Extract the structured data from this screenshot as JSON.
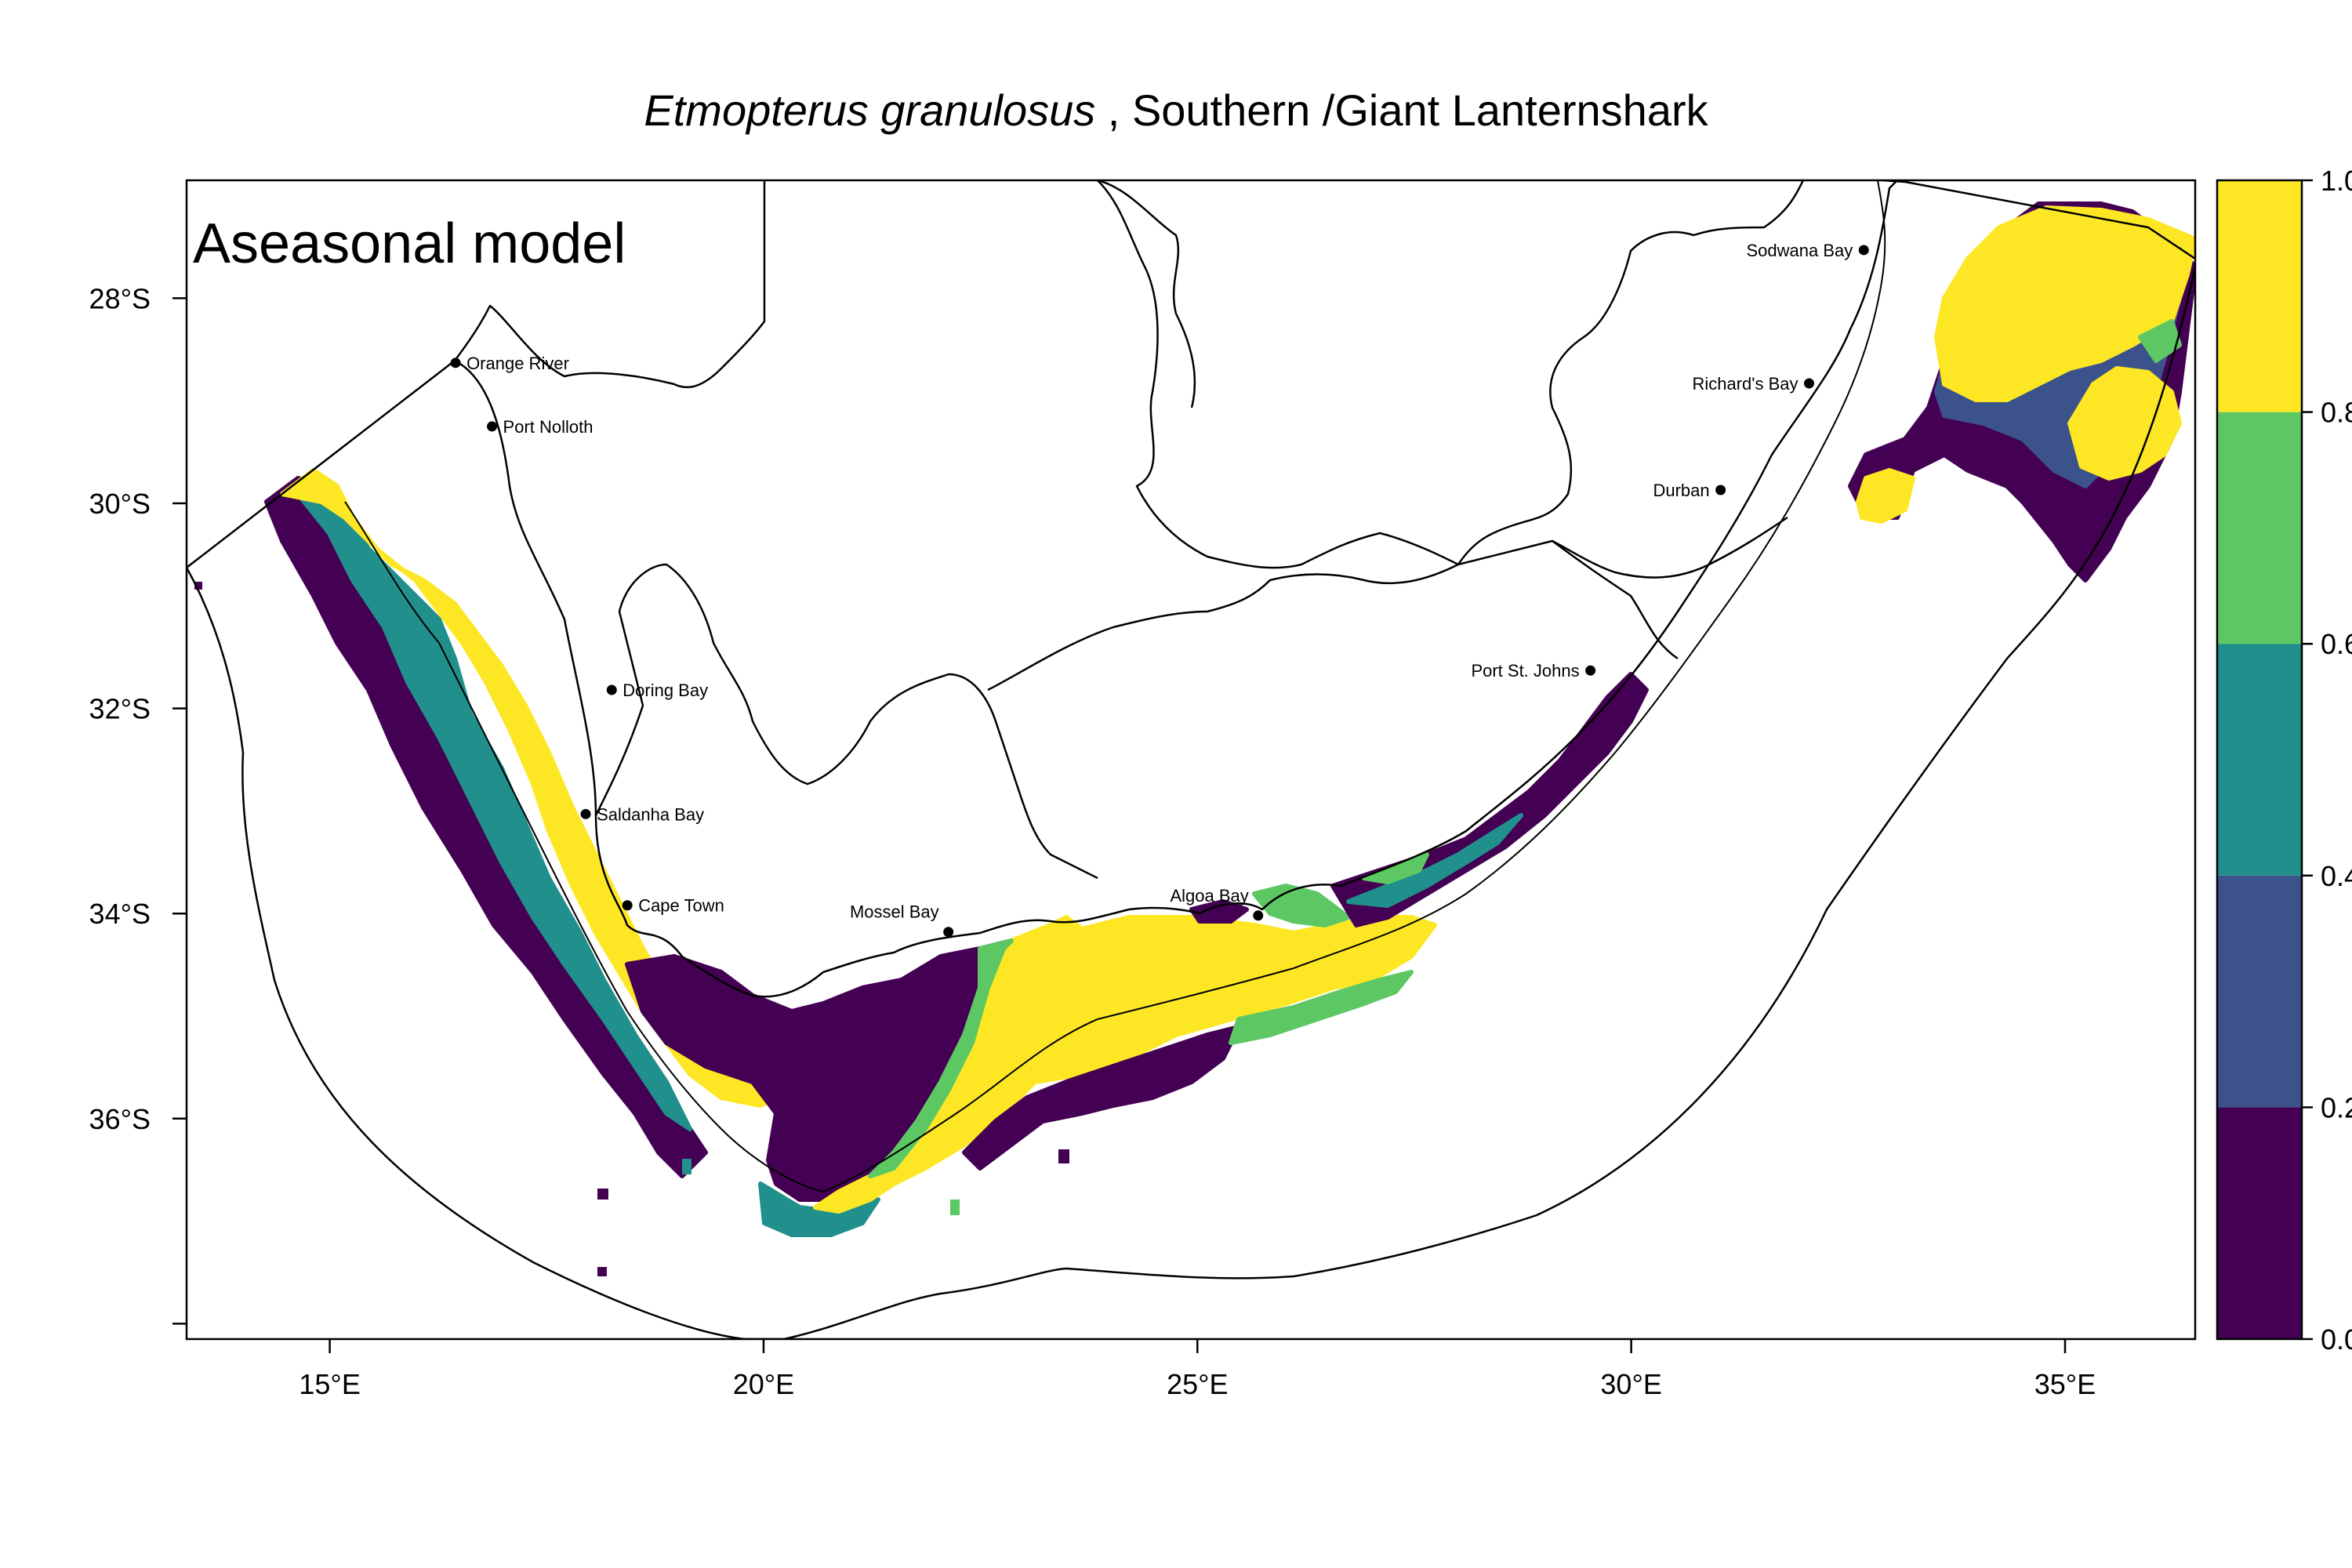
{
  "title": {
    "species": "Etmopterus granulosus",
    "separator": " , ",
    "common_name": "Southern /Giant Lanternshark"
  },
  "panel_label": "Aseasonal model",
  "axes": {
    "x_ticks": [
      {
        "value": 15,
        "label": "15°E"
      },
      {
        "value": 20,
        "label": "20°E"
      },
      {
        "value": 25,
        "label": "25°E"
      },
      {
        "value": 30,
        "label": "30°E"
      },
      {
        "value": 35,
        "label": "35°E"
      }
    ],
    "y_ticks": [
      {
        "value": -28,
        "label": "28°S"
      },
      {
        "value": -30,
        "label": "30°S"
      },
      {
        "value": -32,
        "label": "32°S"
      },
      {
        "value": -34,
        "label": "34°S"
      },
      {
        "value": -36,
        "label": "36°S"
      },
      {
        "value": -38,
        "label": ""
      }
    ],
    "xlim": [
      13.35,
      36.5
    ],
    "ylim": [
      -38.15,
      -26.85
    ]
  },
  "places": [
    {
      "name": "Orange River",
      "lon": 16.45,
      "lat": -28.63,
      "label_side": "right"
    },
    {
      "name": "Port Nolloth",
      "lon": 16.87,
      "lat": -29.25,
      "label_side": "right"
    },
    {
      "name": "Doring Bay",
      "lon": 18.25,
      "lat": -31.82,
      "label_side": "right"
    },
    {
      "name": "Saldanha Bay",
      "lon": 17.95,
      "lat": -33.03,
      "label_side": "right"
    },
    {
      "name": "Cape Town",
      "lon": 18.43,
      "lat": -33.92,
      "label_side": "right"
    },
    {
      "name": "Mossel Bay",
      "lon": 22.13,
      "lat": -34.18,
      "label_side": "upper-left"
    },
    {
      "name": "Algoa Bay",
      "lon": 25.7,
      "lat": -34.02,
      "label_side": "upper-left"
    },
    {
      "name": "Port St. Johns",
      "lon": 29.53,
      "lat": -31.63,
      "label_side": "left"
    },
    {
      "name": "Durban",
      "lon": 31.03,
      "lat": -29.87,
      "label_side": "left"
    },
    {
      "name": "Richard's Bay",
      "lon": 32.05,
      "lat": -28.83,
      "label_side": "left"
    },
    {
      "name": "Sodwana Bay",
      "lon": 32.68,
      "lat": -27.53,
      "label_side": "left"
    }
  ],
  "legend": {
    "breaks": [
      {
        "value": 0.0,
        "label": "0.0"
      },
      {
        "value": 0.2,
        "label": "0.2"
      },
      {
        "value": 0.4,
        "label": "0.4"
      },
      {
        "value": 0.6,
        "label": "0.6"
      },
      {
        "value": 0.8,
        "label": "0.8"
      },
      {
        "value": 1.0,
        "label": "1.0"
      }
    ],
    "colors": [
      "#440154",
      "#3b528b",
      "#21908c",
      "#5dc863",
      "#fde725"
    ]
  }
}
